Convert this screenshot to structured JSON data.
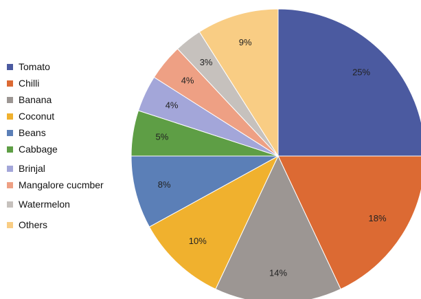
{
  "chart_data": {
    "type": "pie",
    "title": "",
    "legend_position": "left",
    "start_angle": "12 o'clock, clockwise",
    "slices": [
      {
        "name": "Tomato",
        "value": 25,
        "label": "25%",
        "color": "#4b5aa0"
      },
      {
        "name": "Chilli",
        "value": 18,
        "label": "18%",
        "color": "#dc6a33"
      },
      {
        "name": "Banana",
        "value": 14,
        "label": "14%",
        "color": "#9c9693"
      },
      {
        "name": "Coconut",
        "value": 10,
        "label": "10%",
        "color": "#f0b12e"
      },
      {
        "name": "Beans",
        "value": 8,
        "label": "8%",
        "color": "#5b7fb7"
      },
      {
        "name": "Cabbage",
        "value": 5,
        "label": "5%",
        "color": "#5e9e45"
      },
      {
        "name": "Brinjal",
        "value": 4,
        "label": "4%",
        "color": "#a3a6d9"
      },
      {
        "name": "Mangalore cucmber",
        "value": 4,
        "label": "4%",
        "color": "#eea084"
      },
      {
        "name": "Watermelon",
        "value": 3,
        "label": "3%",
        "color": "#c6c1bd"
      },
      {
        "name": "Others",
        "value": 9,
        "label": "9%",
        "color": "#f9cd84"
      }
    ]
  }
}
